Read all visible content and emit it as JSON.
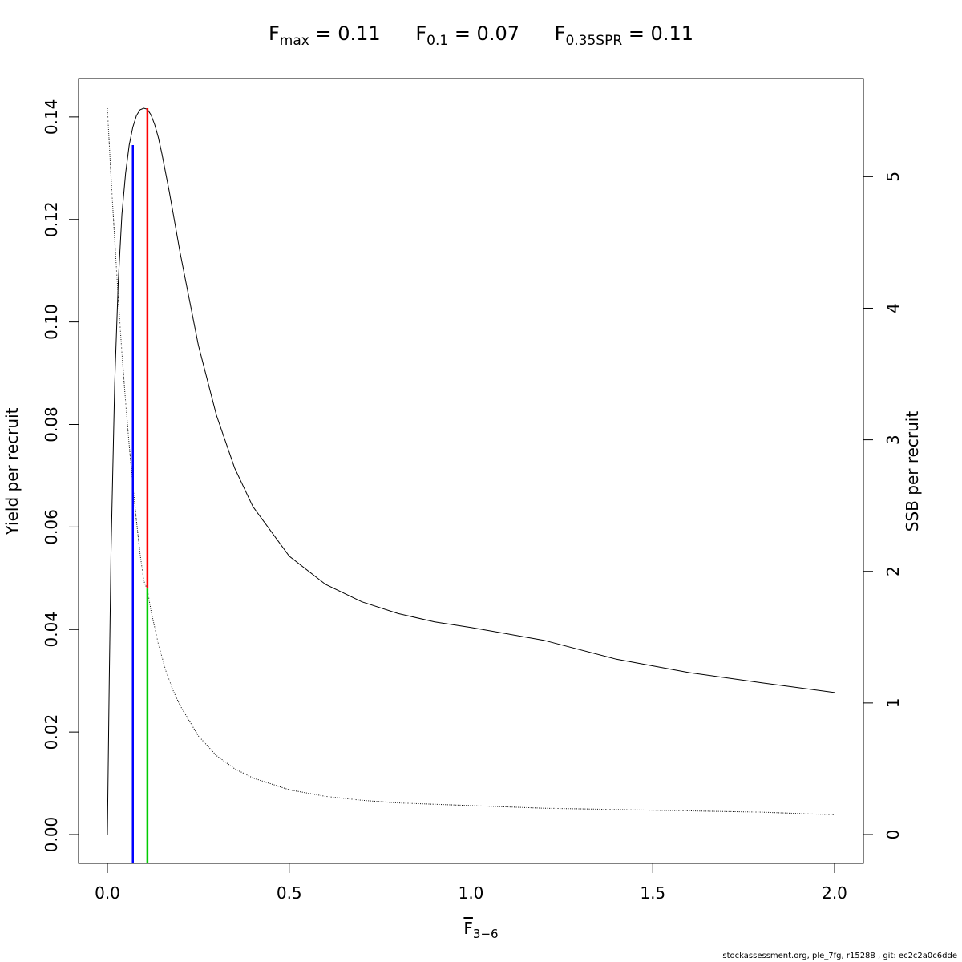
{
  "title": {
    "fmax": {
      "label": "F",
      "sub": "max",
      "value": "= 0.11"
    },
    "f01": {
      "label": "F",
      "sub": "0.1",
      "value": "= 0.07"
    },
    "fspr": {
      "label": "F",
      "sub": "0.35SPR",
      "value": "= 0.11"
    }
  },
  "footer": "stockassessment.org, ple_7fg, r15288 , git: ec2c2a0c6dde",
  "chart_data": {
    "type": "line",
    "xlabel": {
      "main": "F",
      "sub": "3−6"
    },
    "ylabel": "Yield per recruit",
    "y2label": "SSB per recruit",
    "xlim": [
      0,
      2
    ],
    "ylim": [
      0,
      0.1417
    ],
    "y2lim": [
      0,
      5.52
    ],
    "x_ticks": [
      "0.0",
      "0.5",
      "1.0",
      "1.5",
      "2.0"
    ],
    "y_ticks": [
      "0.00",
      "0.02",
      "0.04",
      "0.06",
      "0.08",
      "0.10",
      "0.12",
      "0.14"
    ],
    "y2_ticks": [
      "0",
      "1",
      "2",
      "3",
      "4",
      "5"
    ],
    "series": [
      {
        "axis": "left",
        "style": "solid",
        "color": "#000000",
        "x": [
          0,
          0.005,
          0.01,
          0.02,
          0.03,
          0.04,
          0.05,
          0.06,
          0.07,
          0.08,
          0.09,
          0.1,
          0.11,
          0.12,
          0.13,
          0.14,
          0.15,
          0.17,
          0.2,
          0.25,
          0.3,
          0.35,
          0.4,
          0.5,
          0.6,
          0.7,
          0.8,
          0.9,
          1.0,
          1.2,
          1.4,
          1.6,
          1.8,
          2.0
        ],
        "y": [
          0,
          0.03,
          0.055,
          0.088,
          0.108,
          0.121,
          0.129,
          0.1345,
          0.138,
          0.1403,
          0.1414,
          0.1417,
          0.1415,
          0.1404,
          0.1385,
          0.136,
          0.1328,
          0.1255,
          0.1135,
          0.0955,
          0.0818,
          0.0715,
          0.064,
          0.0543,
          0.0488,
          0.0454,
          0.0431,
          0.0415,
          0.0404,
          0.0379,
          0.0342,
          0.0316,
          0.0296,
          0.0277
        ]
      },
      {
        "axis": "right",
        "style": "dotted",
        "color": "#000000",
        "x": [
          0,
          0.01,
          0.02,
          0.03,
          0.04,
          0.05,
          0.06,
          0.07,
          0.08,
          0.09,
          0.1,
          0.11,
          0.12,
          0.14,
          0.16,
          0.18,
          0.2,
          0.25,
          0.3,
          0.35,
          0.4,
          0.5,
          0.6,
          0.7,
          0.8,
          1.0,
          1.2,
          1.4,
          1.6,
          1.8,
          2.0
        ],
        "y": [
          5.52,
          5.0,
          4.52,
          4.07,
          3.66,
          3.29,
          2.96,
          2.66,
          2.38,
          2.13,
          1.93,
          1.86,
          1.7,
          1.45,
          1.25,
          1.1,
          0.98,
          0.75,
          0.6,
          0.5,
          0.43,
          0.34,
          0.29,
          0.26,
          0.24,
          0.22,
          0.2,
          0.19,
          0.18,
          0.17,
          0.15
        ]
      }
    ],
    "reference_lines": [
      {
        "name": "F0.1",
        "color": "#0000ff",
        "x": 0.07,
        "y_from": -0.0055,
        "y_to": 0.1345,
        "axis": "left"
      },
      {
        "name": "Fmax",
        "color": "#ff0000",
        "x": 0.11,
        "y_from": 0.048,
        "y_to": 0.1417,
        "axis": "left"
      },
      {
        "name": "F0.35SPR",
        "color": "#00cc00",
        "x": 0.11,
        "y_from": -0.0055,
        "y_to": 0.048,
        "axis": "left"
      }
    ]
  }
}
